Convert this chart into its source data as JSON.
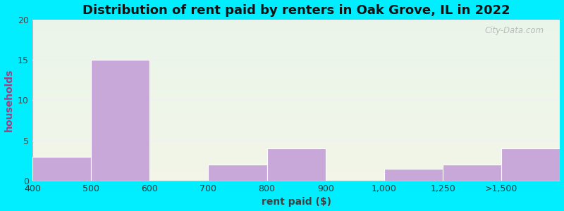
{
  "title": "Distribution of rent paid by renters in Oak Grove, IL in 2022",
  "xlabel": "rent paid ($)",
  "ylabel": "households",
  "tick_labels": [
    "400",
    "500",
    "600",
    "700",
    "800",
    "900",
    "1,000",
    "1,250",
    ">1,500"
  ],
  "bar_values": [
    3,
    15,
    0,
    2,
    4,
    0,
    1.5,
    2,
    4
  ],
  "bar_color": "#c8a8d8",
  "bar_edge_color": "#b090c0",
  "ylim": [
    0,
    20
  ],
  "yticks": [
    0,
    5,
    10,
    15,
    20
  ],
  "bg_outer": "#00eeff",
  "bg_plot_top": "#eaf5ea",
  "bg_plot_bottom": "#f2f5e8",
  "title_fontsize": 13,
  "axis_label_fontsize": 10,
  "tick_fontsize": 9,
  "watermark_text": "City-Data.com",
  "grid_color": "#e8e8e8",
  "ylabel_color": "#a04080",
  "xlabel_color": "#404040",
  "title_color": "#111111"
}
